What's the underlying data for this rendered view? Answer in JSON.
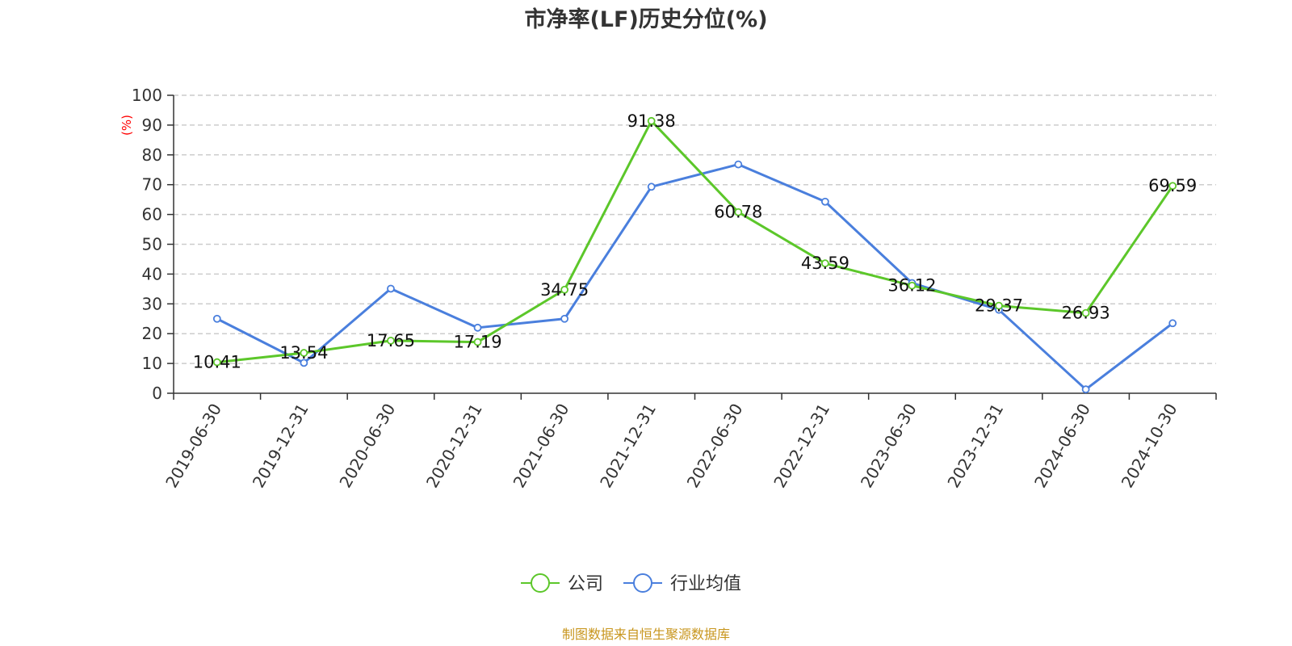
{
  "chart_data": {
    "type": "line",
    "title": "市净率(LF)历史分位(%)",
    "ylabel": "(%)",
    "ylim": [
      0,
      100
    ],
    "yticks": [
      0,
      10,
      20,
      30,
      40,
      50,
      60,
      70,
      80,
      90,
      100
    ],
    "grid": true,
    "legend_position": "bottom",
    "categories": [
      "2019-06-30",
      "2019-12-31",
      "2020-06-30",
      "2020-12-31",
      "2021-06-30",
      "2021-12-31",
      "2022-06-30",
      "2022-12-31",
      "2023-06-30",
      "2023-12-31",
      "2024-06-30",
      "2024-10-30"
    ],
    "series": [
      {
        "name": "公司",
        "color": "#5cc72a",
        "show_labels": true,
        "values": [
          10.41,
          13.54,
          17.65,
          17.19,
          34.75,
          91.38,
          60.78,
          43.59,
          36.12,
          29.37,
          26.93,
          69.59
        ]
      },
      {
        "name": "行业均值",
        "color": "#4a7fdd",
        "show_labels": false,
        "values": [
          25.0,
          10.2,
          35.1,
          22.0,
          25.0,
          69.3,
          76.8,
          64.3,
          37.0,
          28.0,
          1.3,
          23.5
        ]
      }
    ]
  },
  "source_text": "制图数据来自恒生聚源数据库",
  "colors": {
    "axis_text": "#333333",
    "ylabel": "#ff0000",
    "source": "#c8961e",
    "grid": "#cccccc"
  }
}
